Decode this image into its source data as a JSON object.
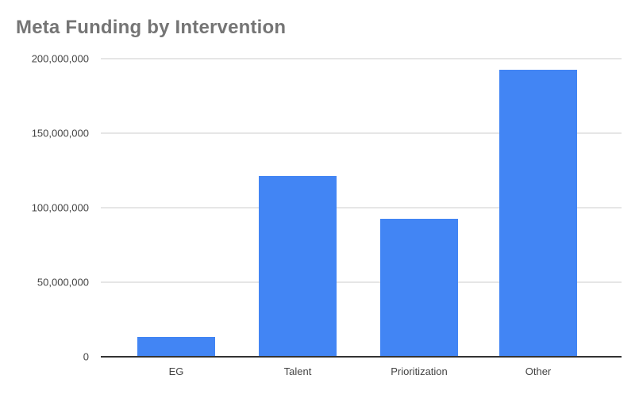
{
  "chart_data": {
    "type": "bar",
    "title": "Meta Funding by Intervention",
    "categories": [
      "EG",
      "Talent",
      "Prioritization",
      "Other"
    ],
    "values": [
      13000000,
      121000000,
      92000000,
      192000000
    ],
    "xlabel": "",
    "ylabel": "",
    "ylim": [
      0,
      200000000
    ],
    "ytick_labels": [
      "0",
      "50,000,000",
      "100,000,000",
      "150,000,000",
      "200,000,000"
    ],
    "grid": true,
    "legend": false,
    "bar_color": "#4285f4",
    "gridline_color": "#e6e6e6",
    "baseline_color": "#333333",
    "title_color": "#757575",
    "axis_label_color": "#444444",
    "background_color": "#ffffff"
  }
}
